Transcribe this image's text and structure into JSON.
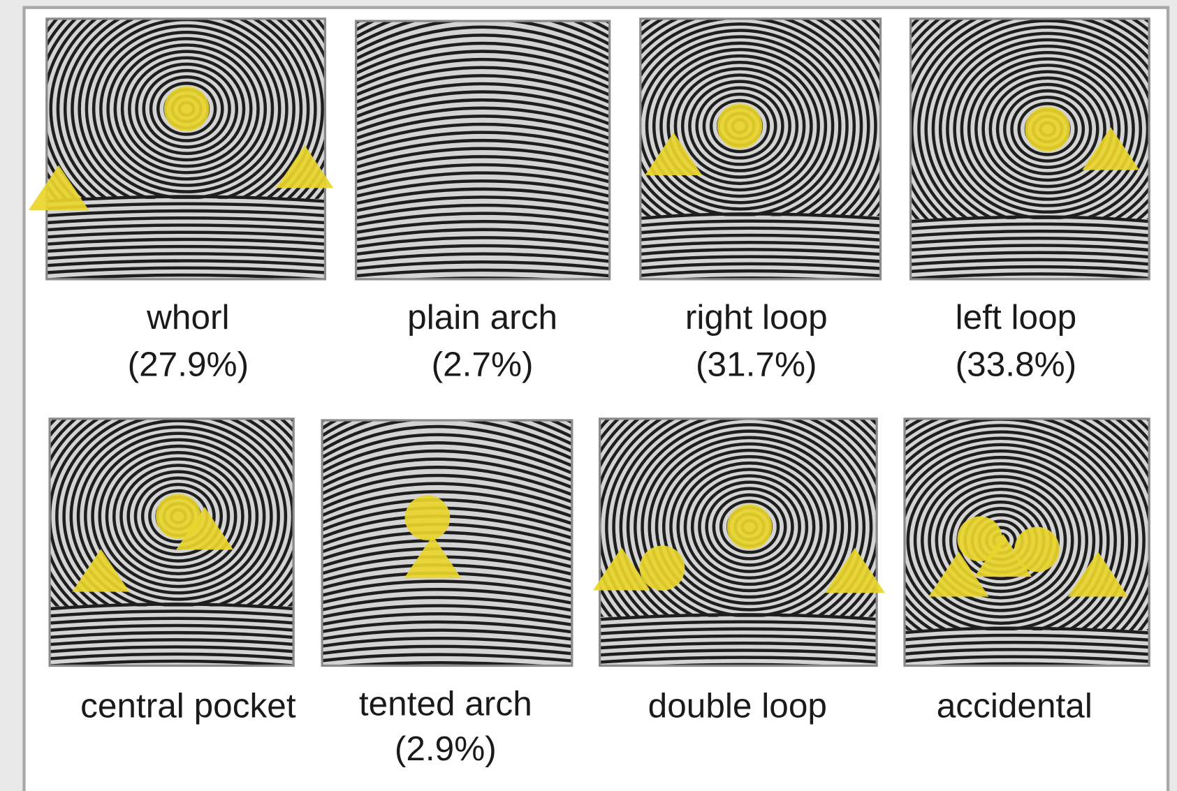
{
  "panels": [
    {
      "label": "whorl",
      "percent": "(27.9%)"
    },
    {
      "label": "plain arch",
      "percent": "(2.7%)"
    },
    {
      "label": "right loop",
      "percent": "(31.7%)"
    },
    {
      "label": "left loop",
      "percent": "(33.8%)"
    },
    {
      "label": "central pocket"
    },
    {
      "label": "tented arch",
      "percent": "(2.9%)"
    },
    {
      "label": "double loop"
    },
    {
      "label": "accidental"
    }
  ]
}
